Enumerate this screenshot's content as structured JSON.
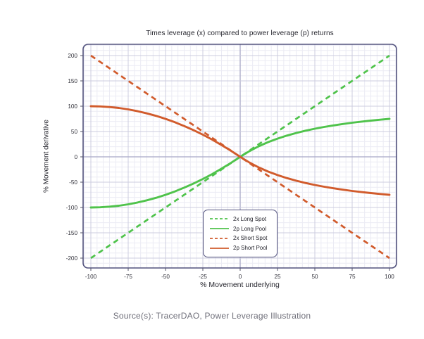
{
  "source": {
    "text": "Source(s): TracerDAO, Power Leverage Illustration"
  },
  "chart_data": {
    "type": "line",
    "title": "Times leverage (x) compared to power leverage (p) returns",
    "xlabel": "% Movement underlying",
    "ylabel": "% Movement derivative",
    "xlim": [
      -105,
      105
    ],
    "ylim": [
      -222,
      222
    ],
    "x_ticks": [
      -100,
      -75,
      -50,
      -25,
      0,
      25,
      50,
      75,
      100
    ],
    "y_ticks": [
      -200,
      -150,
      -100,
      -50,
      0,
      50,
      100,
      150,
      200
    ],
    "grid": true,
    "legend_position": "inside lower-right",
    "series": [
      {
        "name": "2x Long Spot",
        "color": "#4fc34b",
        "dash": true,
        "x": [
          -100,
          100
        ],
        "y": [
          -200,
          200
        ]
      },
      {
        "name": "2p Long Pool",
        "color": "#4fc34b",
        "dash": false,
        "x": [
          -100,
          -93.75,
          -87.5,
          -81.25,
          -75,
          -68.75,
          -62.5,
          -56.25,
          -50,
          -43.75,
          -37.5,
          -31.25,
          -25,
          -18.75,
          -12.5,
          -6.25,
          0,
          6.25,
          12.5,
          18.75,
          25,
          31.25,
          37.5,
          43.75,
          50,
          56.25,
          62.5,
          68.75,
          75,
          81.25,
          87.5,
          93.75,
          100
        ],
        "y": [
          -100,
          -99.6,
          -98.4,
          -96.5,
          -93.8,
          -90.2,
          -85.9,
          -80.9,
          -75,
          -68.4,
          -60.9,
          -52.7,
          -43.8,
          -34,
          -23.4,
          -12.1,
          0,
          11.4,
          21,
          29.1,
          36,
          42,
          47.1,
          51.6,
          55.6,
          59,
          62.1,
          64.9,
          67.3,
          69.6,
          71.5,
          73.4,
          75
        ]
      },
      {
        "name": "2x Short Spot",
        "color": "#d15b2c",
        "dash": true,
        "x": [
          -100,
          100
        ],
        "y": [
          200,
          -200
        ]
      },
      {
        "name": "2p Short Pool",
        "color": "#d15b2c",
        "dash": false,
        "x": [
          -100,
          -93.75,
          -87.5,
          -81.25,
          -75,
          -68.75,
          -62.5,
          -56.25,
          -50,
          -43.75,
          -37.5,
          -31.25,
          -25,
          -18.75,
          -12.5,
          -6.25,
          0,
          6.25,
          12.5,
          18.75,
          25,
          31.25,
          37.5,
          43.75,
          50,
          56.25,
          62.5,
          68.75,
          75,
          81.25,
          87.5,
          93.75,
          100
        ],
        "y": [
          100,
          99.6,
          98.4,
          96.5,
          93.8,
          90.2,
          85.9,
          80.9,
          75,
          68.4,
          60.9,
          52.7,
          43.8,
          34,
          23.4,
          12.1,
          0,
          -11.4,
          -21,
          -29.1,
          -36,
          -42,
          -47.1,
          -51.6,
          -55.6,
          -59,
          -62.1,
          -64.9,
          -67.3,
          -69.6,
          -71.5,
          -73.4,
          -75
        ]
      }
    ],
    "colors": {
      "background": "#ffffff",
      "plot_border": "#52527d",
      "grid_major": "#ccccdf",
      "grid_minor": "#ebebf4",
      "zero_line": "#a8a8c6",
      "tick_text": "#33333c",
      "title_text": "#26262e",
      "source_text": "#6f6f7a",
      "green_series": "#4fc34b",
      "orange_series": "#d15b2c"
    }
  }
}
